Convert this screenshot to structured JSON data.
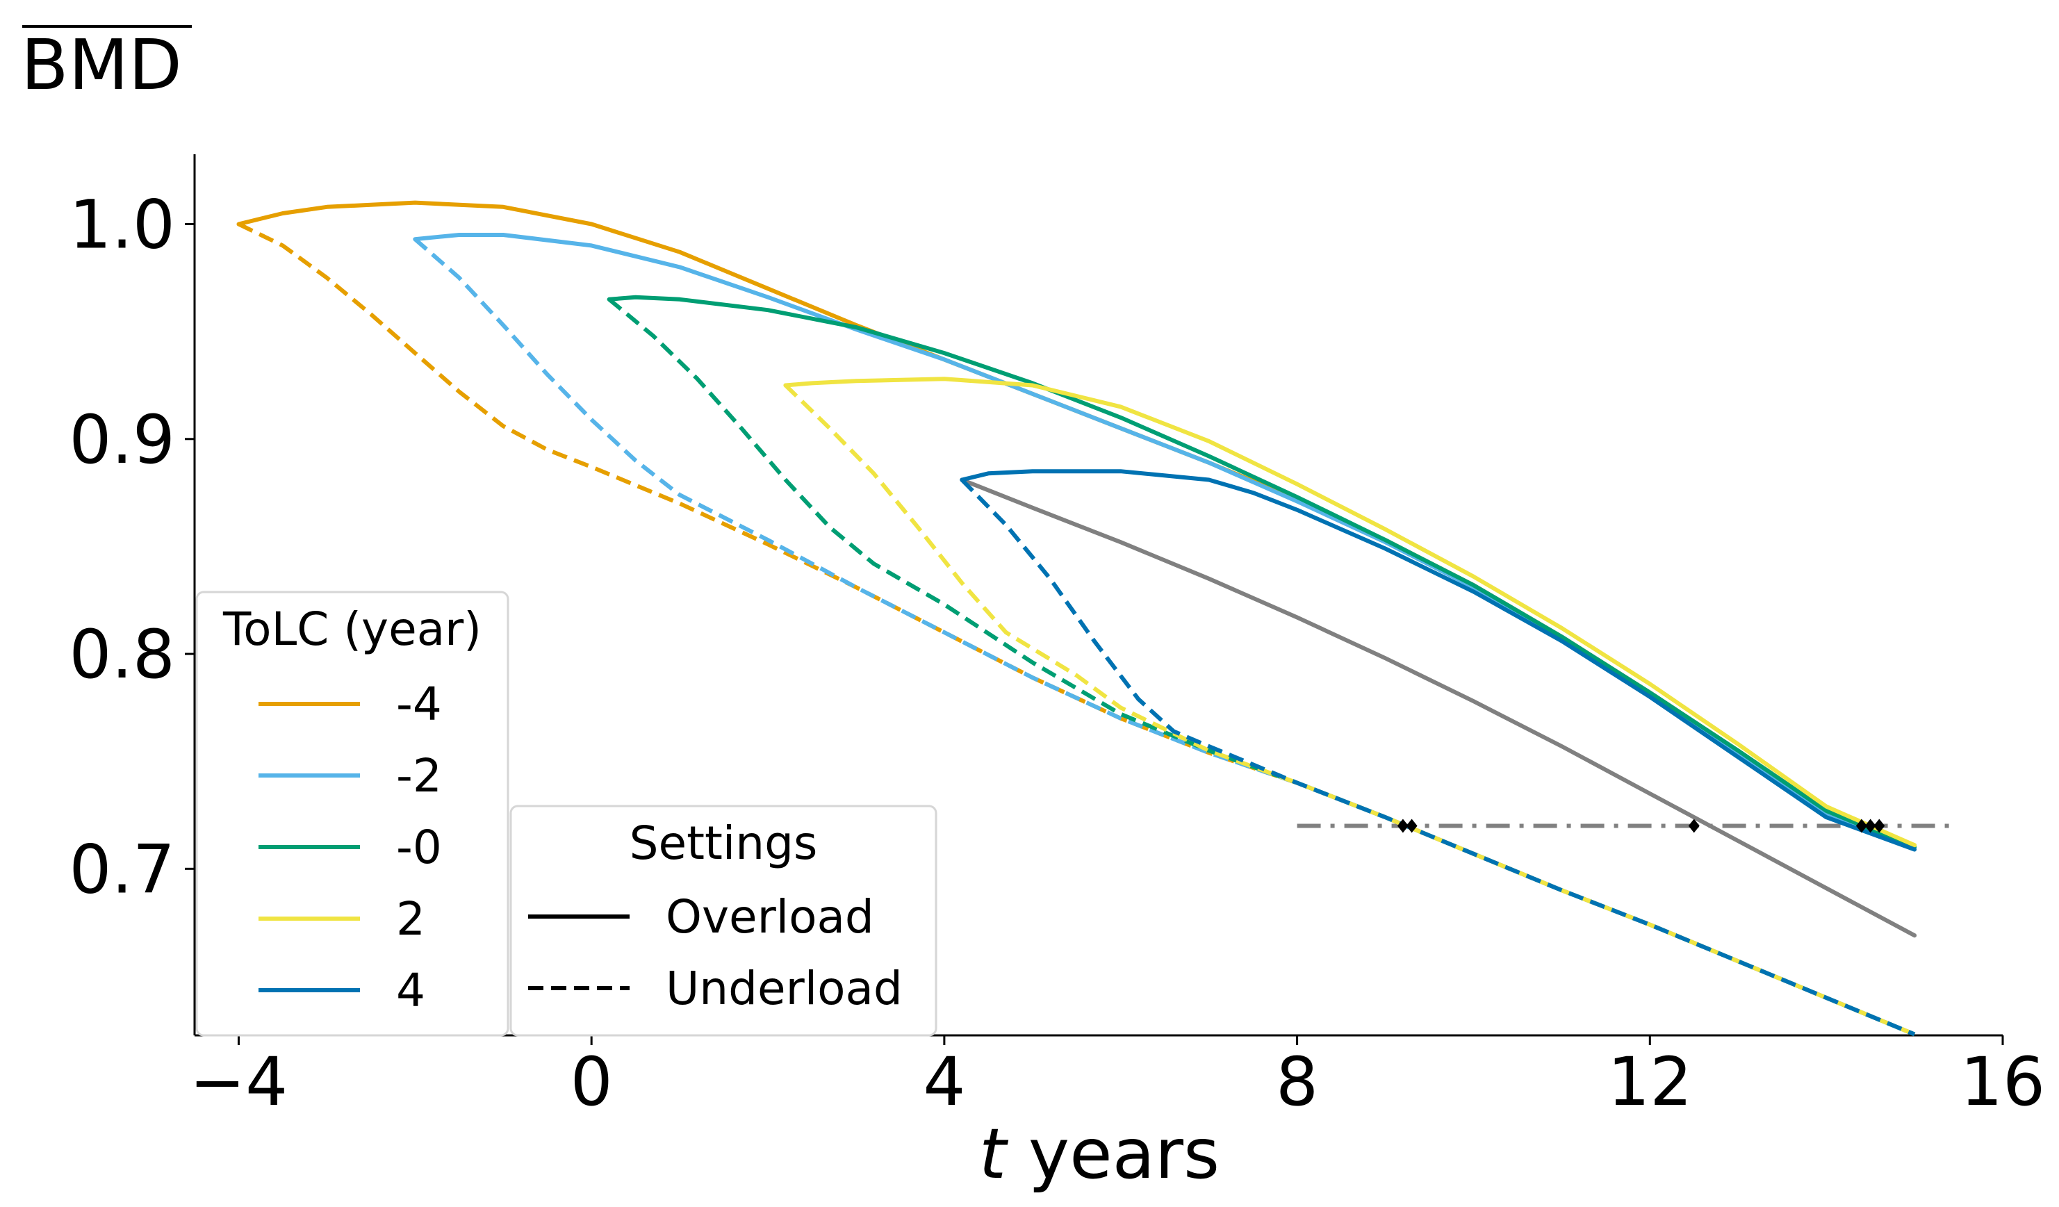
{
  "chart_data": {
    "type": "line",
    "ylabel": "BMD",
    "xlabel_italic": "t",
    "xlabel_rest": " years",
    "xlim": [
      -4.5,
      16
    ],
    "ylim": [
      0.6225,
      1.0325
    ],
    "xticks": [
      -4,
      0,
      4,
      8,
      12,
      16
    ],
    "xtick_labels": [
      "−4",
      "0",
      "4",
      "8",
      "12",
      "16"
    ],
    "yticks": [
      0.7,
      0.8,
      0.9,
      1.0
    ],
    "ytick_labels": [
      "0.7",
      "0.8",
      "0.9",
      "1.0"
    ],
    "colors": {
      "tolc_-4": "#E69F00",
      "tolc_-2": "#56B4E9",
      "tolc_-0": "#009E73",
      "tolc_2": "#F0E442",
      "tolc_4": "#0072B2",
      "baseline": "#808080",
      "threshold": "#808080",
      "marker": "#000000"
    },
    "legend_tolc": {
      "title": "ToLC (year)",
      "placement": "lower-left",
      "entries": [
        {
          "label": "-4",
          "color": "#E69F00"
        },
        {
          "label": "-2",
          "color": "#56B4E9"
        },
        {
          "label": "-0",
          "color": "#009E73"
        },
        {
          "label": "2",
          "color": "#F0E442"
        },
        {
          "label": "4",
          "color": "#0072B2"
        }
      ]
    },
    "legend_settings": {
      "title": "Settings",
      "placement": "lower-center",
      "entries": [
        {
          "label": "Overload",
          "style": "solid"
        },
        {
          "label": "Underload",
          "style": "dashed"
        }
      ]
    },
    "threshold": {
      "y": 0.72,
      "x_start": 8,
      "x_end": 15.5,
      "style": "dashdot"
    },
    "series": [
      {
        "name": "baseline",
        "style": "solid",
        "color_key": "baseline",
        "x": [
          4.2,
          5,
          6,
          7,
          8,
          9,
          10,
          11,
          12,
          13,
          14,
          15
        ],
        "y": [
          0.881,
          0.868,
          0.852,
          0.835,
          0.817,
          0.798,
          0.778,
          0.757,
          0.735,
          0.713,
          0.691,
          0.669
        ]
      },
      {
        "name": "-4 underload",
        "style": "dashed",
        "color_key": "tolc_-4",
        "x": [
          -4,
          -3.5,
          -3,
          -2.5,
          -2,
          -1.5,
          -1,
          -0.5,
          0,
          1,
          2,
          3,
          4,
          5,
          6,
          7,
          8,
          9,
          10,
          11,
          12,
          13,
          14,
          15
        ],
        "y": [
          1.0,
          0.99,
          0.975,
          0.958,
          0.94,
          0.922,
          0.906,
          0.895,
          0.887,
          0.87,
          0.851,
          0.831,
          0.81,
          0.789,
          0.77,
          0.754,
          0.74,
          0.724,
          0.707,
          0.69,
          0.674,
          0.657,
          0.64,
          0.623
        ]
      },
      {
        "name": "-2 underload",
        "style": "dashed",
        "color_key": "tolc_-2",
        "x": [
          -2,
          -1.5,
          -1,
          -0.5,
          0,
          0.5,
          1,
          2,
          3,
          4,
          5,
          6,
          7,
          8,
          9,
          10,
          11,
          12,
          13,
          14,
          15
        ],
        "y": [
          0.993,
          0.975,
          0.953,
          0.93,
          0.909,
          0.89,
          0.874,
          0.853,
          0.831,
          0.81,
          0.789,
          0.77,
          0.754,
          0.74,
          0.724,
          0.707,
          0.69,
          0.674,
          0.657,
          0.64,
          0.623
        ]
      },
      {
        "name": "-0 underload",
        "style": "dashed",
        "color_key": "tolc_-0",
        "x": [
          0.2,
          0.7,
          1.2,
          1.7,
          2.2,
          2.7,
          3.2,
          4,
          5,
          6,
          7,
          8,
          9,
          10,
          11,
          12,
          13,
          14,
          15
        ],
        "y": [
          0.965,
          0.948,
          0.928,
          0.905,
          0.881,
          0.859,
          0.842,
          0.823,
          0.796,
          0.772,
          0.755,
          0.74,
          0.724,
          0.707,
          0.69,
          0.674,
          0.657,
          0.64,
          0.623
        ]
      },
      {
        "name": "2 underload",
        "style": "dashed",
        "color_key": "tolc_2",
        "x": [
          2.2,
          2.7,
          3.2,
          3.7,
          4.2,
          4.7,
          5.5,
          6,
          7,
          8,
          9,
          10,
          11,
          12,
          13,
          14,
          15
        ],
        "y": [
          0.925,
          0.905,
          0.884,
          0.859,
          0.833,
          0.81,
          0.79,
          0.775,
          0.755,
          0.74,
          0.724,
          0.707,
          0.69,
          0.674,
          0.657,
          0.64,
          0.623
        ]
      },
      {
        "name": "4 underload",
        "style": "dashed",
        "color_key": "tolc_4",
        "x": [
          4.2,
          4.7,
          5.2,
          5.7,
          6.2,
          6.6,
          7,
          8,
          9,
          10,
          11,
          12,
          13,
          14,
          15
        ],
        "y": [
          0.881,
          0.86,
          0.835,
          0.806,
          0.779,
          0.764,
          0.757,
          0.74,
          0.724,
          0.707,
          0.69,
          0.674,
          0.657,
          0.64,
          0.623
        ]
      },
      {
        "name": "-4 overload",
        "style": "solid",
        "color_key": "tolc_-4",
        "x": [
          -4,
          -3.5,
          -3,
          -2,
          -1,
          0,
          1,
          2,
          3,
          4,
          5,
          6,
          7,
          8,
          9,
          10,
          11,
          12,
          13,
          14,
          15
        ],
        "y": [
          1.0,
          1.005,
          1.008,
          1.01,
          1.008,
          1.0,
          0.987,
          0.97,
          0.953,
          0.937,
          0.921,
          0.905,
          0.889,
          0.872,
          0.853,
          0.832,
          0.808,
          0.782,
          0.755,
          0.727,
          0.711
        ]
      },
      {
        "name": "-2 overload",
        "style": "solid",
        "color_key": "tolc_-2",
        "x": [
          -2,
          -1.5,
          -1,
          0,
          1,
          2,
          3,
          4,
          5,
          6,
          7,
          8,
          9,
          10,
          11,
          12,
          13,
          14,
          15
        ],
        "y": [
          0.993,
          0.995,
          0.995,
          0.99,
          0.98,
          0.966,
          0.951,
          0.937,
          0.921,
          0.905,
          0.889,
          0.871,
          0.852,
          0.831,
          0.807,
          0.781,
          0.754,
          0.726,
          0.71
        ]
      },
      {
        "name": "-0 overload",
        "style": "solid",
        "color_key": "tolc_-0",
        "x": [
          0.2,
          0.5,
          1,
          2,
          3,
          4,
          5,
          6,
          7,
          8,
          9,
          10,
          11,
          12,
          13,
          14,
          15
        ],
        "y": [
          0.965,
          0.966,
          0.965,
          0.96,
          0.952,
          0.94,
          0.926,
          0.91,
          0.892,
          0.873,
          0.853,
          0.832,
          0.808,
          0.782,
          0.755,
          0.727,
          0.71
        ]
      },
      {
        "name": "2 overload",
        "style": "solid",
        "color_key": "tolc_2",
        "x": [
          2.2,
          2.5,
          3,
          4,
          5,
          6,
          7,
          8,
          9,
          10,
          11,
          12,
          13,
          14,
          15
        ],
        "y": [
          0.925,
          0.926,
          0.927,
          0.928,
          0.925,
          0.915,
          0.899,
          0.879,
          0.858,
          0.836,
          0.812,
          0.786,
          0.758,
          0.729,
          0.711
        ]
      },
      {
        "name": "4 overload",
        "style": "solid",
        "color_key": "tolc_4",
        "x": [
          4.2,
          4.5,
          5,
          6,
          7,
          7.5,
          8,
          9,
          10,
          11,
          12,
          13,
          14,
          15
        ],
        "y": [
          0.881,
          0.884,
          0.885,
          0.885,
          0.881,
          0.875,
          0.867,
          0.849,
          0.829,
          0.806,
          0.78,
          0.752,
          0.724,
          0.709
        ]
      }
    ],
    "markers": [
      {
        "x": 9.2,
        "y": 0.72
      },
      {
        "x": 9.3,
        "y": 0.72
      },
      {
        "x": 12.5,
        "y": 0.72
      },
      {
        "x": 14.4,
        "y": 0.72
      },
      {
        "x": 14.5,
        "y": 0.72
      },
      {
        "x": 14.6,
        "y": 0.72
      }
    ]
  }
}
